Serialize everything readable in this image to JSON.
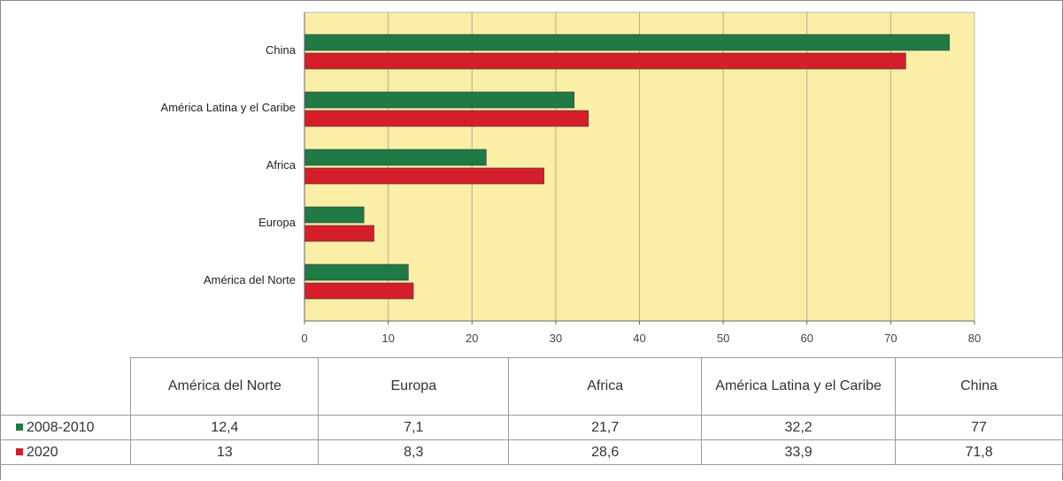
{
  "chart_data": {
    "type": "bar",
    "orientation": "horizontal",
    "categories": [
      "América del Norte",
      "Europa",
      "Africa",
      "América Latina y el Caribe",
      "China"
    ],
    "series": [
      {
        "name": "2008-2010",
        "color": "#1f7a45",
        "values": [
          12.4,
          7.1,
          21.7,
          32.2,
          77
        ]
      },
      {
        "name": "2020",
        "color": "#d41f2a",
        "values": [
          13,
          8.3,
          28.6,
          33.9,
          71.8
        ]
      }
    ],
    "xlim": [
      0,
      80
    ],
    "xticks": [
      "0",
      "10",
      "20",
      "30",
      "40",
      "50",
      "60",
      "70",
      "80"
    ],
    "grid": true,
    "plot_background": "#fbeea6",
    "legend": "data table below chart"
  },
  "table": {
    "headers": [
      "América del Norte",
      "Europa",
      "Africa",
      "América Latina y el Caribe",
      "China"
    ],
    "rows": [
      {
        "label": "2008-2010",
        "color": "#1f7a45",
        "values": [
          "12,4",
          "7,1",
          "21,7",
          "32,2",
          "77"
        ]
      },
      {
        "label": "2020",
        "color": "#d41f2a",
        "values": [
          "13",
          "8,3",
          "28,6",
          "33,9",
          "71,8"
        ]
      }
    ]
  }
}
